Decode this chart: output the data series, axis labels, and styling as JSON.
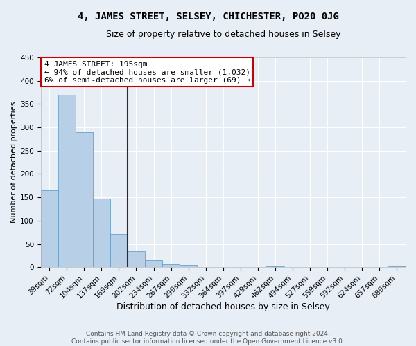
{
  "title": "4, JAMES STREET, SELSEY, CHICHESTER, PO20 0JG",
  "subtitle": "Size of property relative to detached houses in Selsey",
  "xlabel": "Distribution of detached houses by size in Selsey",
  "ylabel": "Number of detached properties",
  "footer_line1": "Contains HM Land Registry data © Crown copyright and database right 2024.",
  "footer_line2": "Contains public sector information licensed under the Open Government Licence v3.0.",
  "bin_labels": [
    "39sqm",
    "72sqm",
    "104sqm",
    "137sqm",
    "169sqm",
    "202sqm",
    "234sqm",
    "267sqm",
    "299sqm",
    "332sqm",
    "364sqm",
    "397sqm",
    "429sqm",
    "462sqm",
    "494sqm",
    "527sqm",
    "559sqm",
    "592sqm",
    "624sqm",
    "657sqm",
    "689sqm"
  ],
  "bar_heights": [
    165,
    370,
    290,
    147,
    72,
    35,
    15,
    7,
    5,
    0,
    0,
    0,
    0,
    2,
    0,
    0,
    0,
    0,
    0,
    0,
    2
  ],
  "bar_color": "#b8cfe8",
  "bar_edge_color": "#6a9fc8",
  "fig_bg_color": "#e8eef5",
  "plot_bg_color": "#e8eef5",
  "grid_color": "#ffffff",
  "vline_x_index": 4.5,
  "vline_color": "#8b0000",
  "annotation_line1": "4 JAMES STREET: 195sqm",
  "annotation_line2": "← 94% of detached houses are smaller (1,032)",
  "annotation_line3": "6% of semi-detached houses are larger (69) →",
  "annotation_box_color": "#ffffff",
  "annotation_box_edge": "#cc0000",
  "ylim": [
    0,
    450
  ],
  "yticks": [
    0,
    50,
    100,
    150,
    200,
    250,
    300,
    350,
    400,
    450
  ],
  "title_fontsize": 10,
  "subtitle_fontsize": 9,
  "xlabel_fontsize": 9,
  "ylabel_fontsize": 8,
  "tick_fontsize": 7.5,
  "annot_fontsize": 8,
  "footer_fontsize": 6.5
}
